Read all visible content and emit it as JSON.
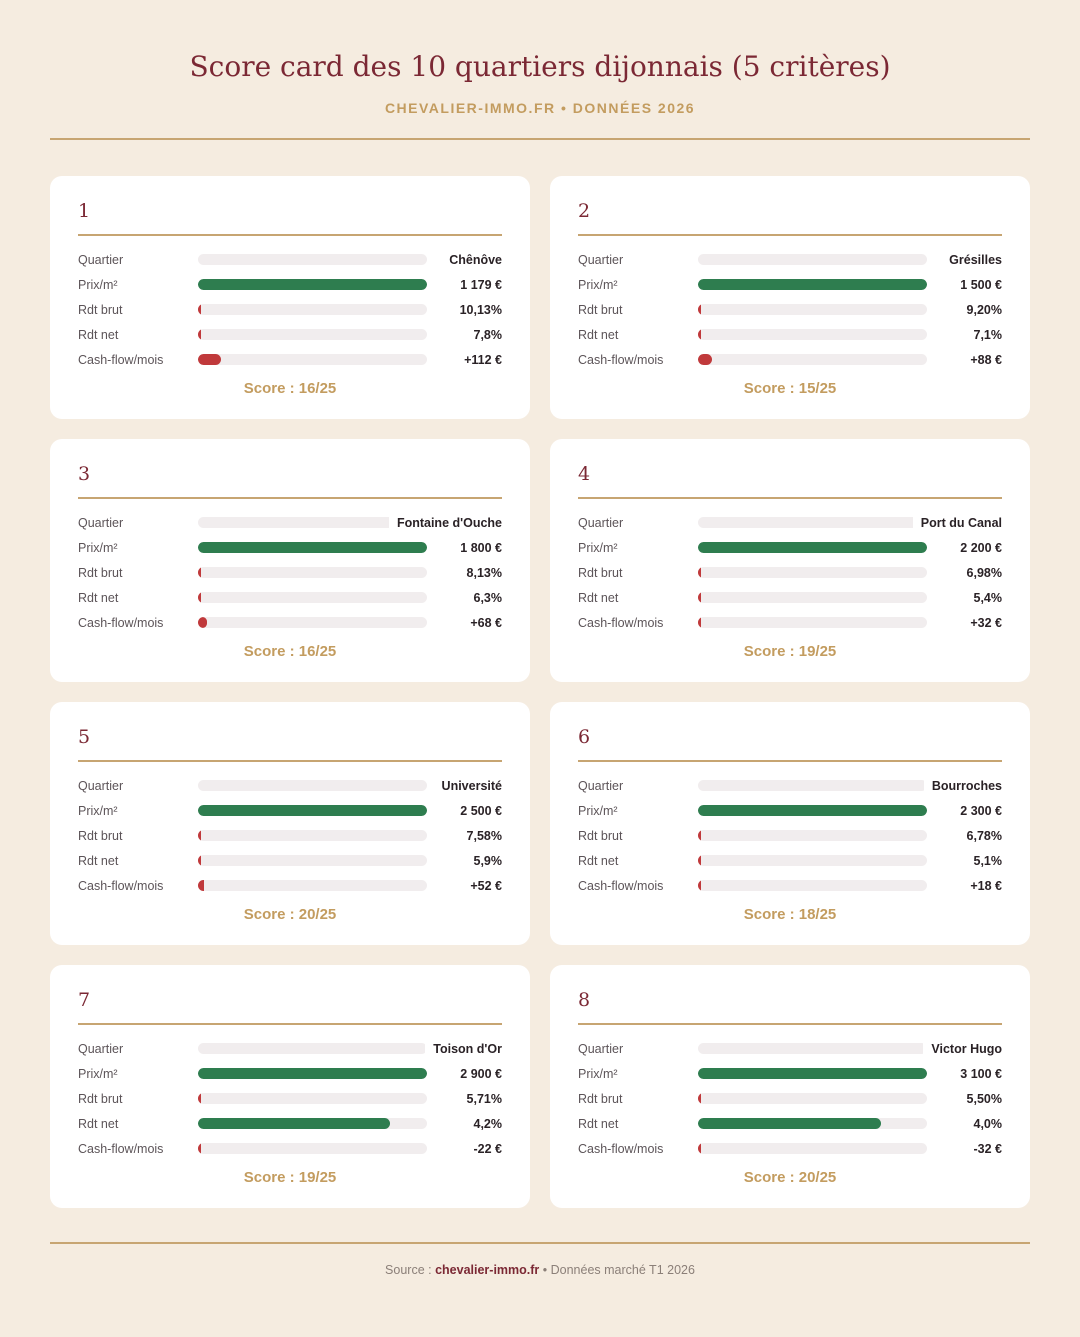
{
  "header": {
    "title": "Score card des 10 quartiers dijonnais (5 critères)",
    "subtitle": "CHEVALIER-IMMO.FR • DONNÉES 2026"
  },
  "footer": {
    "prefix": "Source : ",
    "brand": "chevalier-immo.fr",
    "suffix": " • Données marché T1 2026"
  },
  "colors": {
    "background": "#f5ece0",
    "accent_gold": "#c39c5f",
    "title_burgundy": "#7b2834",
    "bar_green": "#2e7d4f",
    "bar_red": "#c0393b",
    "track": "#f1edee"
  },
  "chart_data": {
    "type": "table",
    "title": "Score card des 10 quartiers dijonnais (5 critères)",
    "subtitle": "CHEVALIER-IMMO.FR • DONNÉES 2026",
    "score_prefix": "Score : ",
    "score_max": 25,
    "criteria_labels": [
      "Quartier",
      "Prix/m²",
      "Rdt brut",
      "Rdt net",
      "Cash-flow/mois"
    ],
    "cards": [
      {
        "rank": "1",
        "quartier": "Chênôve",
        "prix": "1 179 €",
        "rdt_brut": "10,13%",
        "rdt_net": "7,8%",
        "cash_flow": "+112 €",
        "bars": {
          "quartier": 0,
          "prix": 1.0,
          "rdt_brut": 0.01,
          "rdt_net": 0.01,
          "cash_flow": 0.1
        },
        "score": 16,
        "score_text": "Score : 16/25"
      },
      {
        "rank": "2",
        "quartier": "Grésilles",
        "prix": "1 500 €",
        "rdt_brut": "9,20%",
        "rdt_net": "7,1%",
        "cash_flow": "+88 €",
        "bars": {
          "quartier": 0,
          "prix": 1.0,
          "rdt_brut": 0.005,
          "rdt_net": 0.005,
          "cash_flow": 0.06
        },
        "score": 15,
        "score_text": "Score : 15/25"
      },
      {
        "rank": "3",
        "quartier": "Fontaine d'Ouche",
        "prix": "1 800 €",
        "rdt_brut": "8,13%",
        "rdt_net": "6,3%",
        "cash_flow": "+68 €",
        "bars": {
          "quartier": 0,
          "prix": 1.0,
          "rdt_brut": 0.005,
          "rdt_net": 0.005,
          "cash_flow": 0.04
        },
        "score": 16,
        "score_text": "Score : 16/25"
      },
      {
        "rank": "4",
        "quartier": "Port du Canal",
        "prix": "2 200 €",
        "rdt_brut": "6,98%",
        "rdt_net": "5,4%",
        "cash_flow": "+32 €",
        "bars": {
          "quartier": 0,
          "prix": 1.0,
          "rdt_brut": 0.005,
          "rdt_net": 0.005,
          "cash_flow": 0.015
        },
        "score": 19,
        "score_text": "Score : 19/25"
      },
      {
        "rank": "5",
        "quartier": "Université",
        "prix": "2 500 €",
        "rdt_brut": "7,58%",
        "rdt_net": "5,9%",
        "cash_flow": "+52 €",
        "bars": {
          "quartier": 0,
          "prix": 1.0,
          "rdt_brut": 0.005,
          "rdt_net": 0.005,
          "cash_flow": 0.025
        },
        "score": 20,
        "score_text": "Score : 20/25"
      },
      {
        "rank": "6",
        "quartier": "Bourroches",
        "prix": "2 300 €",
        "rdt_brut": "6,78%",
        "rdt_net": "5,1%",
        "cash_flow": "+18 €",
        "bars": {
          "quartier": 0,
          "prix": 1.0,
          "rdt_brut": 0.005,
          "rdt_net": 0.005,
          "cash_flow": 0.01
        },
        "score": 18,
        "score_text": "Score : 18/25"
      },
      {
        "rank": "7",
        "quartier": "Toison d'Or",
        "prix": "2 900 €",
        "rdt_brut": "5,71%",
        "rdt_net": "4,2%",
        "cash_flow": "-22 €",
        "bars": {
          "quartier": 0,
          "prix": 1.0,
          "rdt_brut": 0.005,
          "rdt_net": 0.84,
          "cash_flow": 0.01
        },
        "score": 19,
        "score_text": "Score : 19/25"
      },
      {
        "rank": "8",
        "quartier": "Victor Hugo",
        "prix": "3 100 €",
        "rdt_brut": "5,50%",
        "rdt_net": "4,0%",
        "cash_flow": "-32 €",
        "bars": {
          "quartier": 0,
          "prix": 1.0,
          "rdt_brut": 0.005,
          "rdt_net": 0.8,
          "cash_flow": 0.01
        },
        "score": 20,
        "score_text": "Score : 20/25"
      }
    ]
  }
}
